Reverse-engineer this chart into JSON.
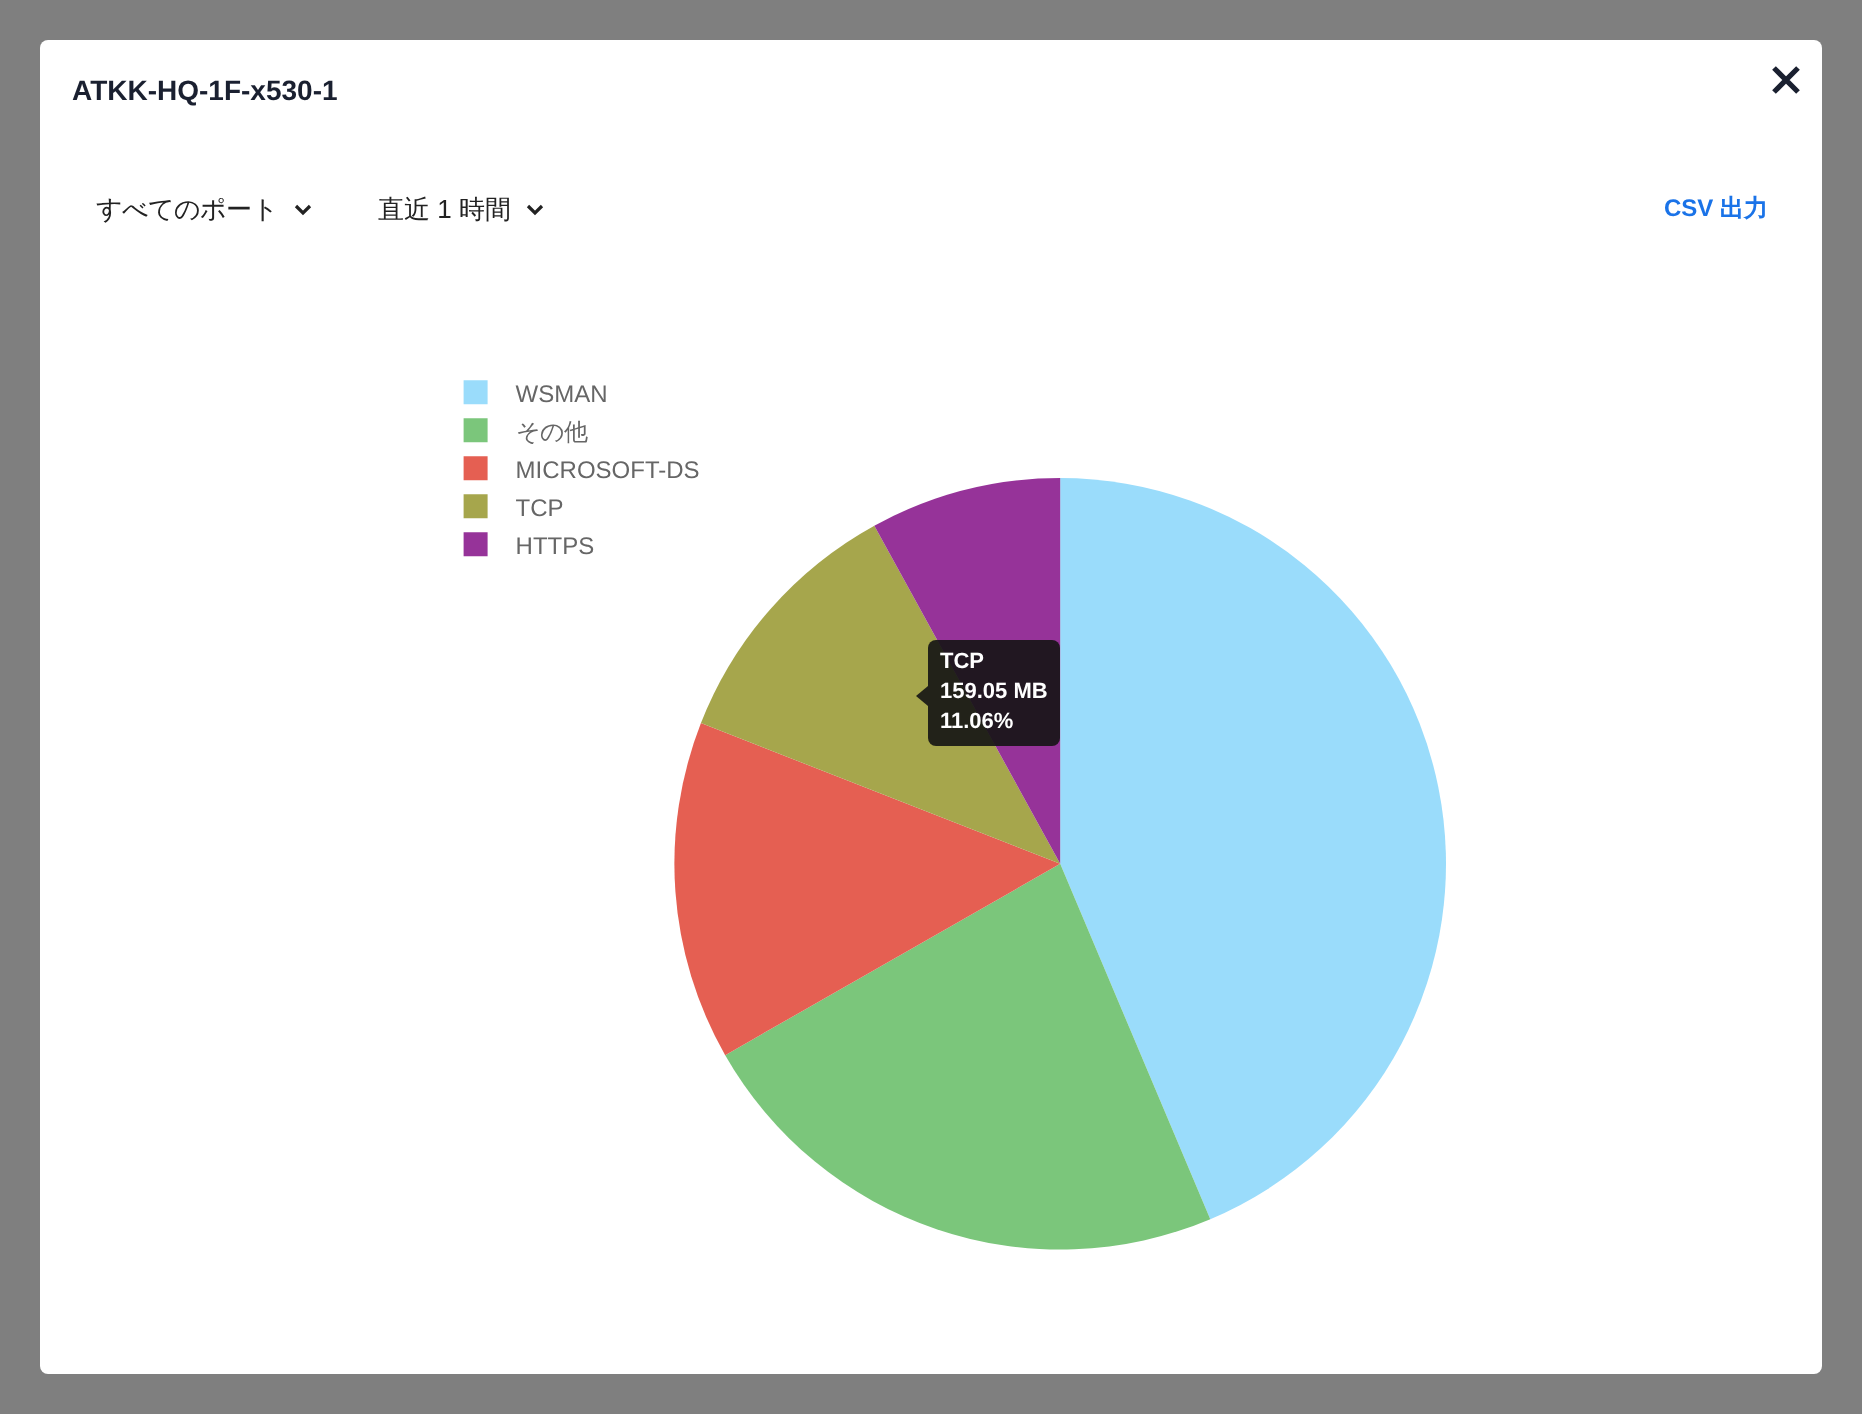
{
  "chart_data": {
    "type": "pie",
    "title": "ATKK-HQ-1F-x530-1",
    "categories": [
      "WSMAN",
      "その他",
      "MICROSOFT-DS",
      "TCP",
      "HTTPS"
    ],
    "values": [
      43.64,
      23.1,
      14.2,
      11.06,
      8.0
    ],
    "colors": [
      "#9adcfb",
      "#7bc67b",
      "#e55f52",
      "#a6a64c",
      "#963399"
    ],
    "legend": "top left",
    "annotations": [
      "すべてのポート",
      "直近 1 時間",
      "CSV 出力",
      "TCP\n159.05 MB\n11.06%"
    ]
  }
}
